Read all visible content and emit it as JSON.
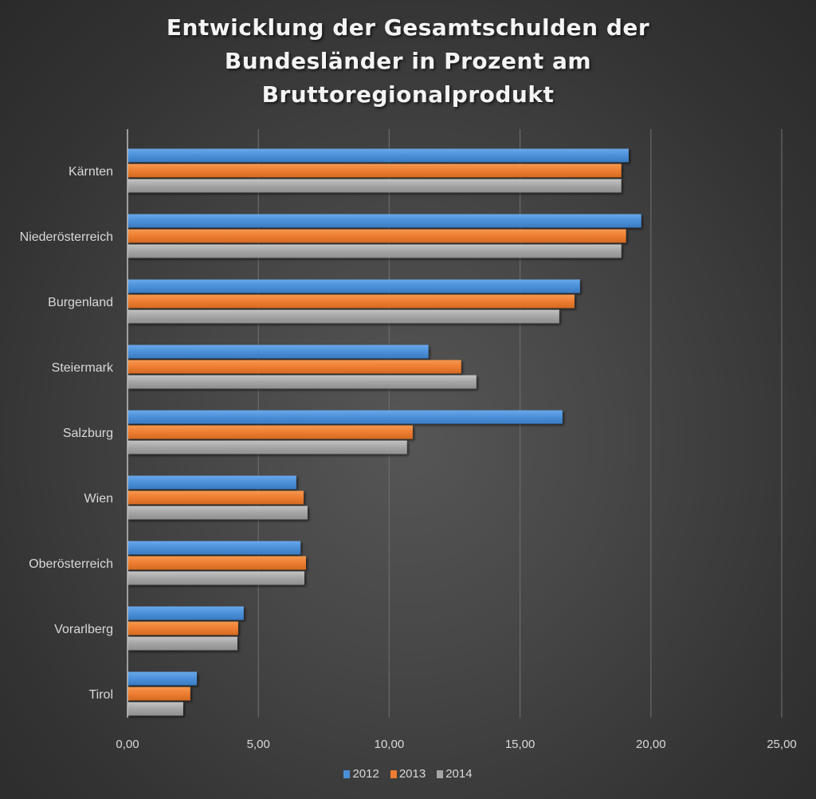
{
  "chart_data": {
    "type": "bar",
    "orientation": "horizontal",
    "title": "Entwicklung der Gesamtschulden der Bundesländer in Prozent am Bruttoregionalprodukt",
    "title_lines": [
      "Entwicklung der Gesamtschulden der",
      "Bundesländer in Prozent am",
      "Bruttoregionalprodukt"
    ],
    "xlabel": "",
    "ylabel": "",
    "categories": [
      "Kärnten",
      "Niederösterreich",
      "Burgenland",
      "Steiermark",
      "Salzburg",
      "Wien",
      "Oberösterreich",
      "Vorarlberg",
      "Tirol"
    ],
    "series": [
      {
        "name": "2012",
        "color": "#4a90d9",
        "values": [
          19.15,
          19.63,
          17.29,
          11.5,
          16.62,
          6.45,
          6.61,
          4.44,
          2.65
        ]
      },
      {
        "name": "2013",
        "color": "#ed7d31",
        "values": [
          18.87,
          19.05,
          17.08,
          12.75,
          10.9,
          6.73,
          6.82,
          4.23,
          2.4
        ]
      },
      {
        "name": "2014",
        "color": "#a5a5a5",
        "values": [
          18.87,
          18.87,
          16.5,
          13.33,
          10.68,
          6.88,
          6.76,
          4.2,
          2.13
        ]
      }
    ],
    "xlim": [
      0,
      25
    ],
    "x_ticks": [
      0,
      5,
      10,
      15,
      20,
      25
    ],
    "x_tick_labels": [
      "0,00",
      "5,00",
      "10,00",
      "15,00",
      "20,00",
      "25,00"
    ],
    "grid": "vertical",
    "legend": {
      "position": "bottom",
      "entries": [
        "2012",
        "2013",
        "2014"
      ]
    }
  }
}
